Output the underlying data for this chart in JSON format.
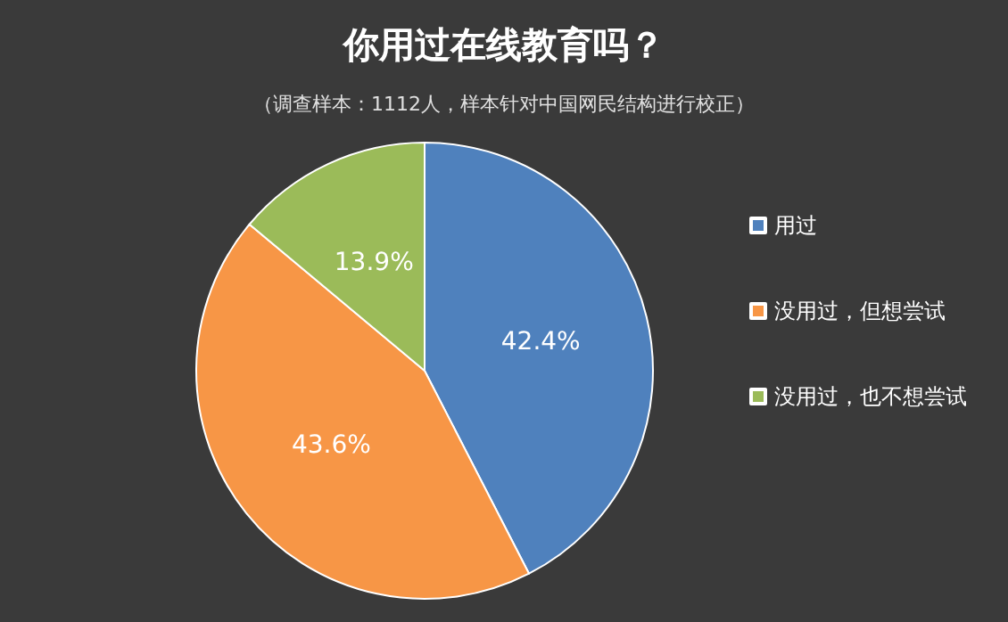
{
  "chart_data": {
    "type": "pie",
    "title": "你用过在线教育吗？",
    "subtitle": "（调查样本：1112人，样本针对中国网民结构进行校正）",
    "categories": [
      "用过",
      "没用过，但想尝试",
      "没用过，也不想尝试"
    ],
    "values": [
      42.4,
      43.6,
      13.9
    ],
    "colors": [
      "#4f81bd",
      "#f79646",
      "#9bbb59"
    ],
    "value_labels": [
      "42.4%",
      "43.6%",
      "13.9%"
    ],
    "legend": "right"
  }
}
